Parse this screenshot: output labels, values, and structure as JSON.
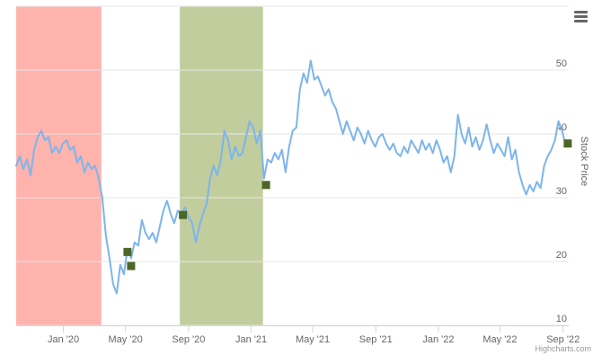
{
  "chart_data": {
    "type": "line",
    "title": "",
    "xlabel": "",
    "ylabel": "Stock Price",
    "x_range": [
      "2019-10-01",
      "2022-09-12"
    ],
    "ylim": [
      10,
      60
    ],
    "y_ticks": [
      10,
      20,
      30,
      40,
      50
    ],
    "x_ticks": [
      {
        "date": "2020-01-01",
        "label": "Jan '20"
      },
      {
        "date": "2020-05-01",
        "label": "May '20"
      },
      {
        "date": "2020-09-01",
        "label": "Sep '20"
      },
      {
        "date": "2021-01-01",
        "label": "Jan '21"
      },
      {
        "date": "2021-05-01",
        "label": "May '21"
      },
      {
        "date": "2021-09-01",
        "label": "Sep '21"
      },
      {
        "date": "2022-01-01",
        "label": "Jan '22"
      },
      {
        "date": "2022-05-01",
        "label": "May '22"
      },
      {
        "date": "2022-09-01",
        "label": "Sep '22"
      }
    ],
    "y_axis_position": "right",
    "grid": "horizontal",
    "shaded_bands": [
      {
        "from": "2019-10-01",
        "to": "2020-03-15",
        "color": "#ffb3ad"
      },
      {
        "from": "2020-08-15",
        "to": "2021-01-24",
        "color": "#c2cd9e"
      }
    ],
    "series": [
      {
        "color": "#7cb5ec",
        "points": [
          [
            "2019-10-01",
            35.0
          ],
          [
            "2019-10-08",
            36.5
          ],
          [
            "2019-10-15",
            34.5
          ],
          [
            "2019-10-22",
            36.0
          ],
          [
            "2019-10-29",
            33.5
          ],
          [
            "2019-11-05",
            37.5
          ],
          [
            "2019-11-12",
            39.5
          ],
          [
            "2019-11-19",
            40.5
          ],
          [
            "2019-11-26",
            39.0
          ],
          [
            "2019-12-03",
            39.5
          ],
          [
            "2019-12-10",
            37.0
          ],
          [
            "2019-12-17",
            38.0
          ],
          [
            "2019-12-24",
            37.0
          ],
          [
            "2019-12-31",
            38.5
          ],
          [
            "2020-01-07",
            39.0
          ],
          [
            "2020-01-14",
            37.5
          ],
          [
            "2020-01-21",
            38.0
          ],
          [
            "2020-01-28",
            35.5
          ],
          [
            "2020-02-04",
            36.5
          ],
          [
            "2020-02-11",
            34.0
          ],
          [
            "2020-02-18",
            35.5
          ],
          [
            "2020-02-25",
            34.5
          ],
          [
            "2020-03-03",
            35.0
          ],
          [
            "2020-03-10",
            33.0
          ],
          [
            "2020-03-17",
            30.0
          ],
          [
            "2020-03-24",
            24.0
          ],
          [
            "2020-03-31",
            20.5
          ],
          [
            "2020-04-07",
            16.5
          ],
          [
            "2020-04-14",
            15.0
          ],
          [
            "2020-04-21",
            19.5
          ],
          [
            "2020-04-28",
            18.0
          ],
          [
            "2020-05-05",
            22.0
          ],
          [
            "2020-05-12",
            20.5
          ],
          [
            "2020-05-19",
            23.0
          ],
          [
            "2020-05-26",
            22.5
          ],
          [
            "2020-06-02",
            26.5
          ],
          [
            "2020-06-09",
            24.5
          ],
          [
            "2020-06-16",
            23.5
          ],
          [
            "2020-06-23",
            24.5
          ],
          [
            "2020-06-30",
            23.0
          ],
          [
            "2020-07-07",
            25.5
          ],
          [
            "2020-07-14",
            28.0
          ],
          [
            "2020-07-21",
            29.5
          ],
          [
            "2020-07-28",
            27.5
          ],
          [
            "2020-08-04",
            26.0
          ],
          [
            "2020-08-11",
            28.0
          ],
          [
            "2020-08-18",
            27.5
          ],
          [
            "2020-08-25",
            28.5
          ],
          [
            "2020-09-01",
            27.0
          ],
          [
            "2020-09-08",
            26.0
          ],
          [
            "2020-09-15",
            23.0
          ],
          [
            "2020-09-22",
            25.5
          ],
          [
            "2020-09-29",
            27.5
          ],
          [
            "2020-10-06",
            29.0
          ],
          [
            "2020-10-13",
            33.0
          ],
          [
            "2020-10-20",
            35.0
          ],
          [
            "2020-10-27",
            33.5
          ],
          [
            "2020-11-03",
            36.0
          ],
          [
            "2020-11-10",
            40.5
          ],
          [
            "2020-11-17",
            39.0
          ],
          [
            "2020-11-24",
            36.0
          ],
          [
            "2020-12-01",
            38.0
          ],
          [
            "2020-12-08",
            36.5
          ],
          [
            "2020-12-15",
            37.0
          ],
          [
            "2020-12-22",
            39.5
          ],
          [
            "2020-12-29",
            42.0
          ],
          [
            "2021-01-05",
            41.0
          ],
          [
            "2021-01-12",
            38.5
          ],
          [
            "2021-01-19",
            40.5
          ],
          [
            "2021-01-26",
            33.0
          ],
          [
            "2021-02-02",
            36.0
          ],
          [
            "2021-02-09",
            35.5
          ],
          [
            "2021-02-16",
            37.0
          ],
          [
            "2021-02-23",
            36.0
          ],
          [
            "2021-03-02",
            37.5
          ],
          [
            "2021-03-09",
            34.0
          ],
          [
            "2021-03-16",
            38.0
          ],
          [
            "2021-03-23",
            40.5
          ],
          [
            "2021-03-30",
            41.0
          ],
          [
            "2021-04-06",
            47.0
          ],
          [
            "2021-04-13",
            49.5
          ],
          [
            "2021-04-20",
            48.0
          ],
          [
            "2021-04-27",
            51.5
          ],
          [
            "2021-05-04",
            48.5
          ],
          [
            "2021-05-11",
            49.0
          ],
          [
            "2021-05-18",
            47.5
          ],
          [
            "2021-05-25",
            46.0
          ],
          [
            "2021-06-01",
            47.0
          ],
          [
            "2021-06-08",
            45.0
          ],
          [
            "2021-06-15",
            44.0
          ],
          [
            "2021-06-22",
            42.0
          ],
          [
            "2021-06-29",
            40.0
          ],
          [
            "2021-07-06",
            42.0
          ],
          [
            "2021-07-13",
            40.5
          ],
          [
            "2021-07-20",
            39.0
          ],
          [
            "2021-07-27",
            41.0
          ],
          [
            "2021-08-03",
            40.0
          ],
          [
            "2021-08-10",
            38.5
          ],
          [
            "2021-08-17",
            40.5
          ],
          [
            "2021-08-24",
            39.0
          ],
          [
            "2021-08-31",
            38.0
          ],
          [
            "2021-09-07",
            39.5
          ],
          [
            "2021-09-14",
            40.0
          ],
          [
            "2021-09-21",
            38.5
          ],
          [
            "2021-09-28",
            37.5
          ],
          [
            "2021-10-05",
            38.5
          ],
          [
            "2021-10-12",
            37.0
          ],
          [
            "2021-10-19",
            36.5
          ],
          [
            "2021-10-26",
            38.0
          ],
          [
            "2021-11-02",
            37.0
          ],
          [
            "2021-11-09",
            39.0
          ],
          [
            "2021-11-16",
            38.0
          ],
          [
            "2021-11-23",
            37.0
          ],
          [
            "2021-11-30",
            39.0
          ],
          [
            "2021-12-07",
            37.5
          ],
          [
            "2021-12-14",
            38.5
          ],
          [
            "2021-12-21",
            37.0
          ],
          [
            "2021-12-28",
            39.0
          ],
          [
            "2022-01-04",
            37.5
          ],
          [
            "2022-01-11",
            35.5
          ],
          [
            "2022-01-18",
            36.5
          ],
          [
            "2022-01-25",
            34.0
          ],
          [
            "2022-02-01",
            36.5
          ],
          [
            "2022-02-08",
            43.0
          ],
          [
            "2022-02-15",
            40.0
          ],
          [
            "2022-02-22",
            38.5
          ],
          [
            "2022-03-01",
            41.0
          ],
          [
            "2022-03-08",
            38.0
          ],
          [
            "2022-03-15",
            39.5
          ],
          [
            "2022-03-22",
            37.5
          ],
          [
            "2022-03-29",
            39.0
          ],
          [
            "2022-04-05",
            41.5
          ],
          [
            "2022-04-12",
            39.0
          ],
          [
            "2022-04-19",
            37.0
          ],
          [
            "2022-04-26",
            38.5
          ],
          [
            "2022-05-03",
            37.5
          ],
          [
            "2022-05-10",
            36.5
          ],
          [
            "2022-05-17",
            39.5
          ],
          [
            "2022-05-24",
            36.0
          ],
          [
            "2022-05-31",
            37.5
          ],
          [
            "2022-06-07",
            34.0
          ],
          [
            "2022-06-14",
            32.0
          ],
          [
            "2022-06-21",
            30.5
          ],
          [
            "2022-06-28",
            32.0
          ],
          [
            "2022-07-05",
            31.0
          ],
          [
            "2022-07-12",
            32.5
          ],
          [
            "2022-07-19",
            31.5
          ],
          [
            "2022-07-26",
            35.0
          ],
          [
            "2022-08-02",
            36.5
          ],
          [
            "2022-08-09",
            37.5
          ],
          [
            "2022-08-16",
            39.0
          ],
          [
            "2022-08-23",
            42.0
          ],
          [
            "2022-08-30",
            40.5
          ],
          [
            "2022-09-05",
            38.5
          ]
        ]
      }
    ],
    "markers": [
      {
        "date": "2020-05-05",
        "value": 21.5,
        "color": "#4c6625"
      },
      {
        "date": "2020-05-12",
        "value": 19.3,
        "color": "#4c6625"
      },
      {
        "date": "2020-08-21",
        "value": 27.3,
        "color": "#4c6625"
      },
      {
        "date": "2021-01-30",
        "value": 32.0,
        "color": "#4c6625"
      },
      {
        "date": "2022-09-10",
        "value": 38.5,
        "color": "#4c6625"
      }
    ]
  },
  "ui": {
    "menu_icon": "hamburger-menu-icon",
    "credit": "Highcharts.com"
  }
}
